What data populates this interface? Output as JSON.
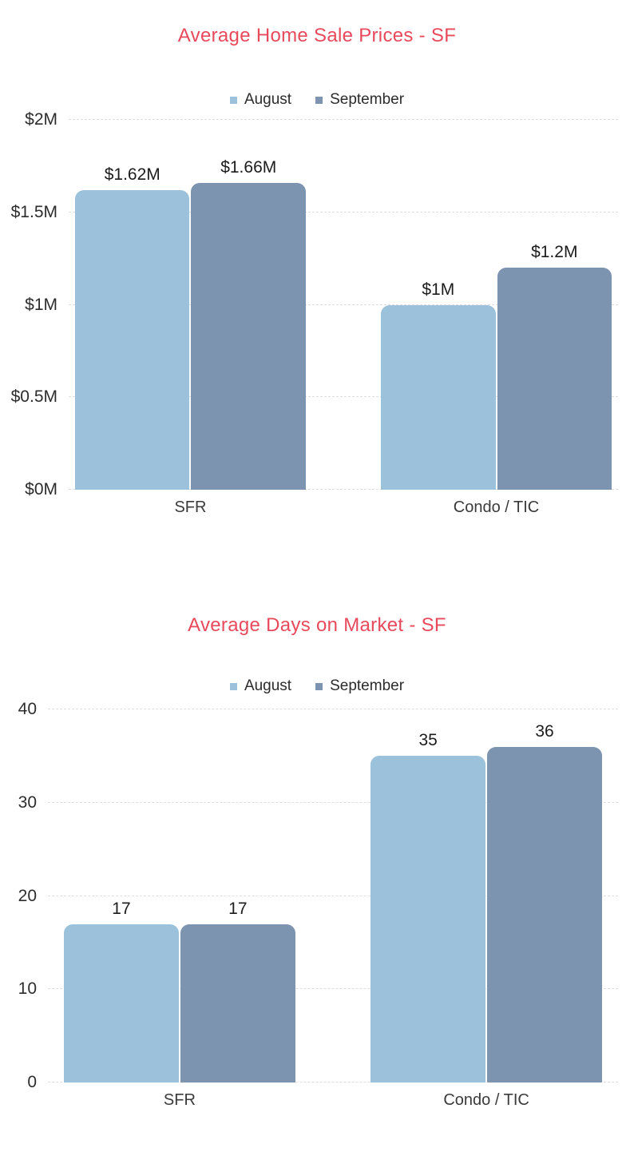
{
  "colors": {
    "title": "#e8495b",
    "august": "#9cc2db",
    "september": "#7d94b1",
    "gridline": "#dedede",
    "axis_text": "#2d2d2d",
    "bar_label_text": "#1c1c1c"
  },
  "chart_data": [
    {
      "type": "bar",
      "title": "Average Home Sale Prices - SF",
      "categories": [
        "SFR",
        "Condo / TIC"
      ],
      "series": [
        {
          "name": "August",
          "color": "#9cc2db",
          "values": [
            1.62,
            1.0
          ],
          "labels": [
            "$1.62M",
            "$1M"
          ]
        },
        {
          "name": "September",
          "color": "#7d94b1",
          "values": [
            1.66,
            1.2
          ],
          "labels": [
            "$1.66M",
            "$1.2M"
          ]
        }
      ],
      "ylim": [
        0,
        2
      ],
      "yticks": [
        {
          "value": 0,
          "label": "$0M"
        },
        {
          "value": 0.5,
          "label": "$0.5M"
        },
        {
          "value": 1,
          "label": "$1M"
        },
        {
          "value": 1.5,
          "label": "$1.5M"
        },
        {
          "value": 2,
          "label": "$2M"
        }
      ],
      "grid": true,
      "legend_position": "top"
    },
    {
      "type": "bar",
      "title": "Average Days on Market - SF",
      "categories": [
        "SFR",
        "Condo / TIC"
      ],
      "series": [
        {
          "name": "August",
          "color": "#9cc2db",
          "values": [
            17,
            35
          ],
          "labels": [
            "17",
            "35"
          ]
        },
        {
          "name": "September",
          "color": "#7d94b1",
          "values": [
            17,
            36
          ],
          "labels": [
            "17",
            "36"
          ]
        }
      ],
      "ylim": [
        0,
        40
      ],
      "yticks": [
        {
          "value": 0,
          "label": "0"
        },
        {
          "value": 10,
          "label": "10"
        },
        {
          "value": 20,
          "label": "20"
        },
        {
          "value": 30,
          "label": "30"
        },
        {
          "value": 40,
          "label": "40"
        }
      ],
      "grid": true,
      "legend_position": "top"
    }
  ]
}
